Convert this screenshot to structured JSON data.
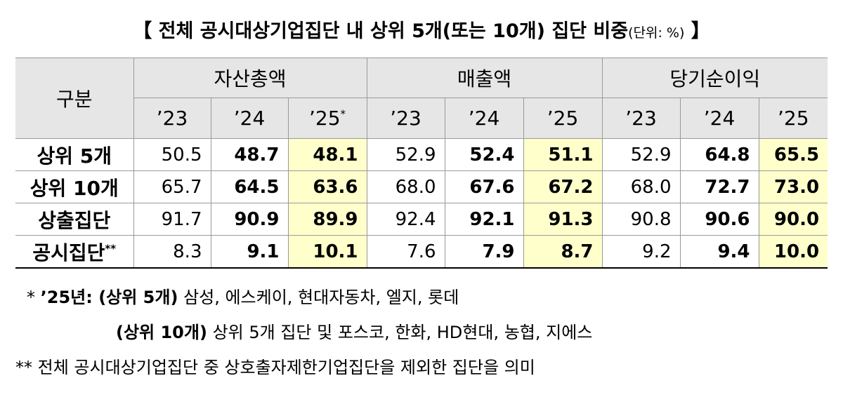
{
  "title": {
    "open": "【",
    "text": "전체 공시대상기업집단 내 상위 5개(또는 10개) 집단 비중",
    "unit": "(단위: %)",
    "close": "】"
  },
  "table": {
    "header": {
      "group": "구분",
      "columns": [
        {
          "label": "자산총액",
          "years": [
            "’23",
            "’24",
            "’25"
          ],
          "mark": "*"
        },
        {
          "label": "매출액",
          "years": [
            "’23",
            "’24",
            "’25"
          ]
        },
        {
          "label": "당기순이익",
          "years": [
            "’23",
            "’24",
            "’25"
          ]
        }
      ]
    },
    "rows": [
      {
        "label": "상위 5개",
        "values": [
          "50.5",
          "48.7",
          "48.1",
          "52.9",
          "52.4",
          "51.1",
          "52.9",
          "64.8",
          "65.5"
        ]
      },
      {
        "label": "상위 10개",
        "values": [
          "65.7",
          "64.5",
          "63.6",
          "68.0",
          "67.6",
          "67.2",
          "68.0",
          "72.7",
          "73.0"
        ]
      },
      {
        "label": "상출집단",
        "values": [
          "91.7",
          "90.9",
          "89.9",
          "92.4",
          "92.1",
          "91.3",
          "90.8",
          "90.6",
          "90.0"
        ]
      },
      {
        "label": "공시집단",
        "mark": "**",
        "values": [
          "8.3",
          "9.1",
          "10.1",
          "7.6",
          "7.9",
          "8.7",
          "9.2",
          "9.4",
          "10.0"
        ]
      }
    ]
  },
  "notes": [
    {
      "marker": "*",
      "bold": "’25년: (상위 5개)",
      "text": "삼성, 에스케이, 현대자동차, 엘지, 롯데"
    },
    {
      "bold": "(상위 10개)",
      "text": "상위 5개 집단 및 포스코, 한화, HD현대, 농협, 지에스"
    },
    {
      "marker": "**",
      "text": "전체 공시대상기업집단 중 상호출자제한기업집단을 제외한 집단을 의미"
    }
  ]
}
